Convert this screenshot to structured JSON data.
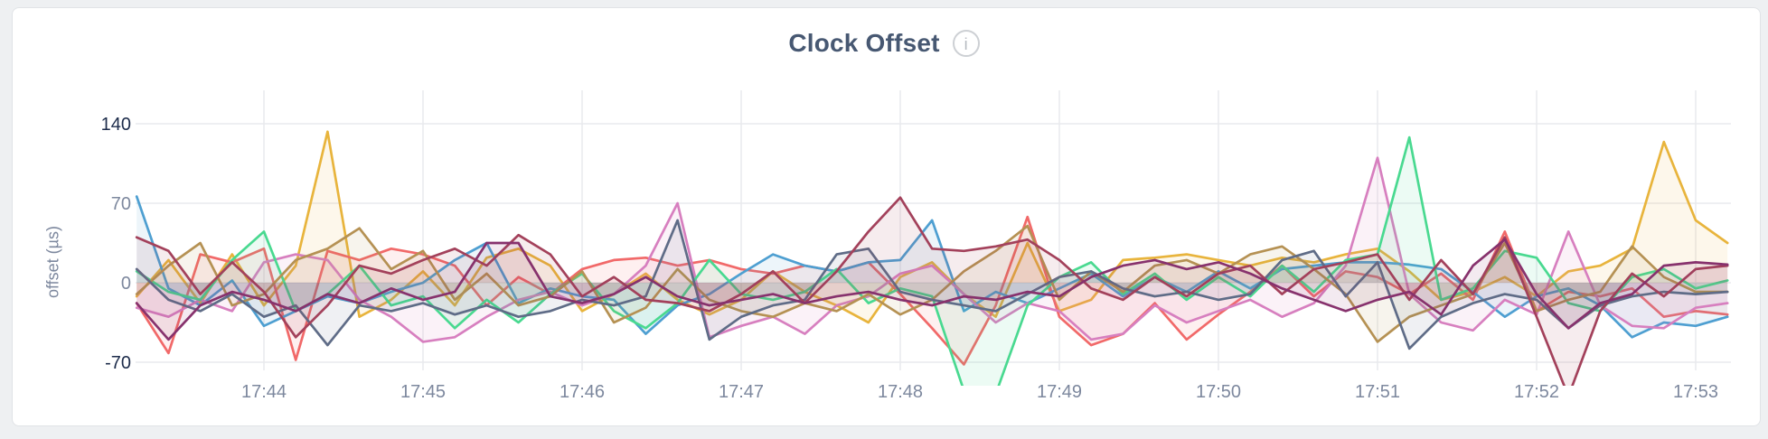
{
  "header": {
    "title": "Clock Offset",
    "info_icon_glyph": "i"
  },
  "colors": {
    "page_bg": "#eef0f2",
    "card_bg": "#ffffff",
    "card_border": "#e0e3e6",
    "grid": "#e9eaed",
    "tick_strong": "#1c2b4a",
    "tick_muted": "#7d889e",
    "title": "#475872"
  },
  "chart_data": {
    "type": "line",
    "title": "Clock Offset",
    "ylabel": "offset (µs)",
    "legend": "none",
    "grid": "on",
    "x_axis": {
      "unit": "time (HH:MM)",
      "start_minute": 43.2,
      "step_minute": 0.2,
      "ticks": [
        {
          "t": 44,
          "label": "17:44"
        },
        {
          "t": 45,
          "label": "17:45"
        },
        {
          "t": 46,
          "label": "17:46"
        },
        {
          "t": 47,
          "label": "17:47"
        },
        {
          "t": 48,
          "label": "17:48"
        },
        {
          "t": 49,
          "label": "17:49"
        },
        {
          "t": 50,
          "label": "17:50"
        },
        {
          "t": 51,
          "label": "17:51"
        },
        {
          "t": 52,
          "label": "17:52"
        },
        {
          "t": 53,
          "label": "17:53"
        }
      ]
    },
    "y_axis": {
      "ticks": [
        {
          "value": 140,
          "label": "140",
          "emphasis": true
        },
        {
          "value": 70,
          "label": "70",
          "emphasis": false
        },
        {
          "value": 0,
          "label": "0",
          "emphasis": false
        },
        {
          "value": -70,
          "label": "-70",
          "emphasis": true
        }
      ],
      "range_shown": [
        -70,
        140
      ]
    },
    "series": [
      {
        "name": "series-1",
        "color": "#E8B43C",
        "values": [
          -12,
          20,
          -18,
          25,
          -20,
          15,
          133,
          -30,
          -15,
          10,
          -20,
          22,
          30,
          15,
          -25,
          -10,
          8,
          -15,
          -28,
          -15,
          10,
          -8,
          -20,
          -35,
          5,
          18,
          -10,
          -30,
          35,
          -25,
          -15,
          20,
          22,
          25,
          20,
          15,
          22,
          18,
          25,
          30,
          10,
          -15,
          -8,
          5,
          -12,
          10,
          15,
          30,
          124,
          55,
          35
        ]
      },
      {
        "name": "series-2",
        "color": "#F16969",
        "values": [
          -18,
          -62,
          25,
          18,
          30,
          -68,
          28,
          20,
          30,
          25,
          15,
          -20,
          5,
          -10,
          12,
          20,
          22,
          15,
          20,
          12,
          8,
          15,
          10,
          18,
          -10,
          -40,
          -72,
          -20,
          58,
          -30,
          -55,
          -45,
          -18,
          -50,
          -28,
          -8,
          15,
          -12,
          10,
          5,
          -10,
          8,
          -15,
          45,
          -25,
          -8,
          -12,
          -5,
          -30,
          -25,
          -28
        ]
      },
      {
        "name": "series-3",
        "color": "#4E9FD1",
        "values": [
          76,
          -5,
          -20,
          2,
          -38,
          -25,
          -12,
          -18,
          -8,
          0,
          20,
          35,
          -18,
          -5,
          -12,
          -15,
          -45,
          -20,
          -10,
          8,
          25,
          15,
          10,
          18,
          20,
          55,
          -25,
          -8,
          -18,
          -5,
          8,
          -12,
          5,
          -8,
          10,
          -5,
          12,
          15,
          18,
          18,
          16,
          12,
          -8,
          -30,
          -12,
          -5,
          -20,
          -48,
          -35,
          -38,
          -30
        ]
      },
      {
        "name": "series-4",
        "color": "#D77FBF",
        "values": [
          -22,
          -30,
          -15,
          -25,
          18,
          25,
          20,
          -15,
          -30,
          -52,
          -48,
          -30,
          -15,
          -8,
          -20,
          -10,
          15,
          70,
          -48,
          -38,
          -30,
          -45,
          -20,
          -12,
          8,
          15,
          -10,
          -35,
          -18,
          -25,
          -50,
          -45,
          -20,
          -35,
          -25,
          -15,
          -30,
          -18,
          15,
          110,
          -10,
          -35,
          -42,
          -15,
          -28,
          45,
          -20,
          -38,
          -40,
          -22,
          -18
        ]
      },
      {
        "name": "series-5",
        "color": "#49D990",
        "values": [
          10,
          -8,
          -15,
          20,
          45,
          -25,
          -10,
          15,
          -20,
          -12,
          -40,
          -15,
          -35,
          -10,
          8,
          -25,
          -40,
          -18,
          20,
          -10,
          -15,
          -8,
          12,
          -18,
          -5,
          -12,
          -95,
          -98,
          -20,
          5,
          18,
          -10,
          8,
          -15,
          5,
          -12,
          15,
          -8,
          20,
          25,
          128,
          -15,
          -5,
          28,
          22,
          -18,
          -25,
          5,
          12,
          -5,
          2
        ]
      },
      {
        "name": "series-6",
        "color": "#B59153",
        "values": [
          -10,
          15,
          35,
          -20,
          -10,
          20,
          30,
          48,
          12,
          28,
          -15,
          8,
          -20,
          -12,
          10,
          -35,
          -22,
          12,
          -15,
          -25,
          -30,
          -18,
          -25,
          -10,
          -28,
          -15,
          10,
          28,
          50,
          -15,
          10,
          -8,
          15,
          20,
          8,
          25,
          32,
          12,
          -10,
          -52,
          -30,
          -20,
          -10,
          35,
          -25,
          -15,
          -8,
          32,
          5,
          -8,
          -8
        ]
      },
      {
        "name": "series-7",
        "color": "#5F6C87",
        "values": [
          12,
          -15,
          -25,
          -10,
          -30,
          -20,
          -55,
          -20,
          -25,
          -18,
          -28,
          -20,
          -30,
          -25,
          -15,
          -20,
          -12,
          55,
          -50,
          -30,
          -20,
          -15,
          25,
          30,
          -8,
          -15,
          -20,
          -25,
          -10,
          5,
          10,
          -5,
          -12,
          -8,
          -15,
          -10,
          20,
          28,
          -12,
          18,
          -58,
          -30,
          -18,
          -10,
          -15,
          -40,
          -20,
          -12,
          -8,
          -10,
          -8
        ]
      },
      {
        "name": "series-8",
        "color": "#A3415B",
        "values": [
          40,
          28,
          -10,
          18,
          -8,
          -48,
          -20,
          15,
          8,
          20,
          30,
          15,
          42,
          25,
          -12,
          5,
          -15,
          -18,
          -25,
          -10,
          10,
          -18,
          10,
          45,
          75,
          30,
          28,
          32,
          38,
          20,
          -5,
          -15,
          5,
          -12,
          8,
          15,
          -10,
          12,
          18,
          25,
          -15,
          20,
          -10,
          40,
          -30,
          -100,
          -25,
          8,
          -12,
          12,
          15
        ]
      },
      {
        "name": "series-9",
        "color": "#87326D",
        "values": [
          -18,
          -50,
          -20,
          -8,
          -15,
          -25,
          -10,
          -18,
          -5,
          -15,
          -8,
          35,
          35,
          -12,
          -18,
          -10,
          5,
          -12,
          -20,
          -15,
          -10,
          -18,
          -12,
          -8,
          -15,
          -20,
          -12,
          -15,
          -8,
          -12,
          5,
          15,
          20,
          12,
          18,
          8,
          -5,
          -15,
          -25,
          -15,
          -8,
          -28,
          15,
          38,
          -10,
          -40,
          -18,
          -10,
          15,
          18,
          16
        ]
      }
    ]
  }
}
